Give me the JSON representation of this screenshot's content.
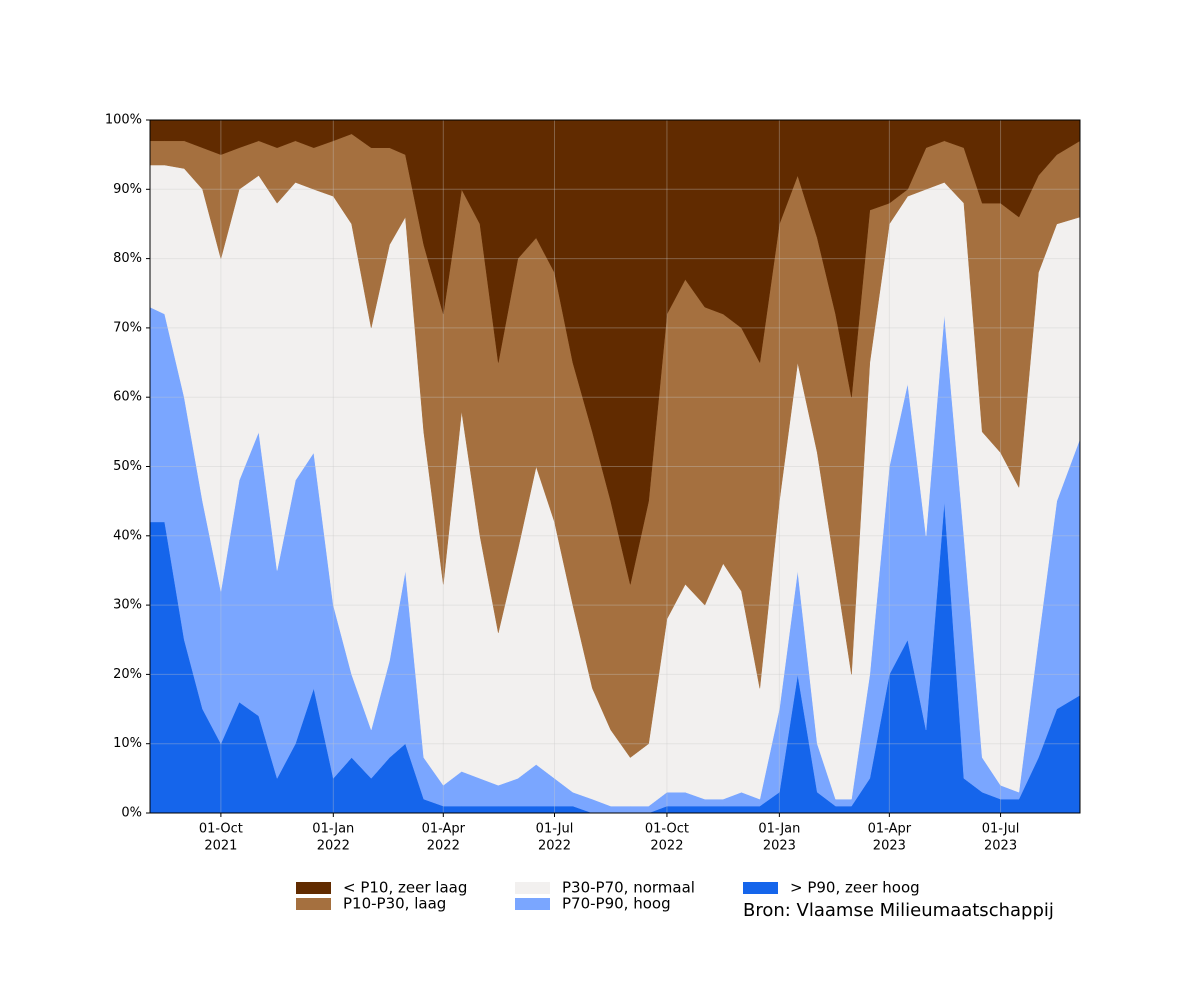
{
  "chart_data": {
    "type": "stacked_area",
    "source": "Bron: Vlaamse Milieumaatschappij",
    "x": [
      "2021-08-04",
      "2021-08-16",
      "2021-09-01",
      "2021-09-16",
      "2021-10-01",
      "2021-10-16",
      "2021-11-01",
      "2021-11-16",
      "2021-12-01",
      "2021-12-16",
      "2022-01-01",
      "2022-01-16",
      "2022-02-01",
      "2022-02-16",
      "2022-03-01",
      "2022-03-16",
      "2022-04-01",
      "2022-04-16",
      "2022-05-01",
      "2022-05-16",
      "2022-06-01",
      "2022-06-16",
      "2022-07-01",
      "2022-07-16",
      "2022-08-01",
      "2022-08-16",
      "2022-09-01",
      "2022-09-16",
      "2022-10-01",
      "2022-10-16",
      "2022-11-01",
      "2022-11-16",
      "2022-12-01",
      "2022-12-16",
      "2023-01-01",
      "2023-01-16",
      "2023-02-01",
      "2023-02-16",
      "2023-03-01",
      "2023-03-16",
      "2023-04-01",
      "2023-04-16",
      "2023-05-01",
      "2023-05-16",
      "2023-06-01",
      "2023-06-16",
      "2023-07-01",
      "2023-07-16",
      "2023-08-01",
      "2023-08-16",
      "2023-09-04"
    ],
    "series": [
      {
        "name": "< P10, zeer laag",
        "color": "#612b00",
        "values": [
          3,
          3,
          3,
          4,
          5,
          4,
          3,
          4,
          3,
          4,
          3,
          2,
          4,
          4,
          5,
          18,
          28,
          10,
          15,
          35,
          20,
          17,
          22,
          35,
          45,
          55,
          67,
          55,
          28,
          23,
          27,
          28,
          30,
          35,
          15,
          8,
          17,
          28,
          40,
          13,
          12,
          10,
          4,
          3,
          4,
          12,
          12,
          14,
          8,
          5,
          3
        ]
      },
      {
        "name": "P10-P30, laag",
        "color": "#a5703f",
        "values": [
          3.5,
          3.5,
          4,
          6,
          15,
          6,
          5,
          8,
          6,
          6,
          8,
          13,
          26,
          14,
          9,
          27,
          39,
          32,
          45,
          39,
          42,
          33,
          36,
          35,
          37,
          33,
          25,
          35,
          44,
          44,
          43,
          36,
          38,
          47,
          40,
          27,
          31,
          37,
          40,
          22,
          3,
          1,
          6,
          6,
          8,
          33,
          36,
          39,
          14,
          10,
          11
        ]
      },
      {
        "name": "P30-P70, normaal",
        "color": "#f2f0ef",
        "values": [
          20.5,
          21.5,
          33,
          45,
          48,
          42,
          37,
          53,
          43,
          38,
          59,
          65,
          58,
          60,
          51,
          47,
          29,
          52,
          35,
          22,
          33,
          43,
          37,
          27,
          16,
          11,
          7,
          9,
          25,
          30,
          28,
          34,
          29,
          16,
          30,
          30,
          42,
          33,
          18,
          45,
          35,
          27,
          50,
          19,
          48,
          47,
          48,
          44,
          53,
          40,
          32
        ]
      },
      {
        "name": "P70-P90, hoog",
        "color": "#7aa6ff",
        "values": [
          31,
          30,
          35,
          30,
          22,
          32,
          41,
          30,
          38,
          34,
          25,
          12,
          7,
          14,
          25,
          6,
          3,
          5,
          4,
          3,
          4,
          6,
          4,
          2,
          2,
          1,
          1,
          1,
          2,
          2,
          1,
          1,
          2,
          1,
          12,
          15,
          7,
          1,
          1,
          15,
          30,
          37,
          28,
          27,
          35,
          5,
          2,
          1,
          17,
          30,
          37
        ]
      },
      {
        "name": "> P90, zeer hoog",
        "color": "#1565eb",
        "values": [
          42,
          42,
          25,
          15,
          10,
          16,
          14,
          5,
          10,
          18,
          5,
          8,
          5,
          8,
          10,
          2,
          1,
          1,
          1,
          1,
          1,
          1,
          1,
          1,
          0,
          0,
          0,
          0,
          1,
          1,
          1,
          1,
          1,
          1,
          3,
          20,
          3,
          1,
          1,
          5,
          20,
          25,
          12,
          45,
          5,
          3,
          2,
          2,
          8,
          15,
          17
        ]
      }
    ],
    "xlim": [
      "2021-08-04",
      "2023-09-04"
    ],
    "xticks": [
      {
        "value": "2021-10-01",
        "label": [
          "01-Oct",
          "2021"
        ]
      },
      {
        "value": "2022-01-01",
        "label": [
          "01-Jan",
          "2022"
        ]
      },
      {
        "value": "2022-04-01",
        "label": [
          "01-Apr",
          "2022"
        ]
      },
      {
        "value": "2022-07-01",
        "label": [
          "01-Jul",
          "2022"
        ]
      },
      {
        "value": "2022-10-01",
        "label": [
          "01-Oct",
          "2022"
        ]
      },
      {
        "value": "2023-01-01",
        "label": [
          "01-Jan",
          "2023"
        ]
      },
      {
        "value": "2023-04-01",
        "label": [
          "01-Apr",
          "2023"
        ]
      },
      {
        "value": "2023-07-01",
        "label": [
          "01-Jul",
          "2023"
        ]
      }
    ],
    "ylim": [
      0,
      100
    ],
    "yticks": [
      {
        "value": 0,
        "label": "0%"
      },
      {
        "value": 10,
        "label": "10%"
      },
      {
        "value": 20,
        "label": "20%"
      },
      {
        "value": 30,
        "label": "30%"
      },
      {
        "value": 40,
        "label": "40%"
      },
      {
        "value": 50,
        "label": "50%"
      },
      {
        "value": 60,
        "label": "60%"
      },
      {
        "value": 70,
        "label": "70%"
      },
      {
        "value": 80,
        "label": "80%"
      },
      {
        "value": 90,
        "label": "90%"
      },
      {
        "value": 100,
        "label": "100%"
      }
    ],
    "grid": true
  }
}
